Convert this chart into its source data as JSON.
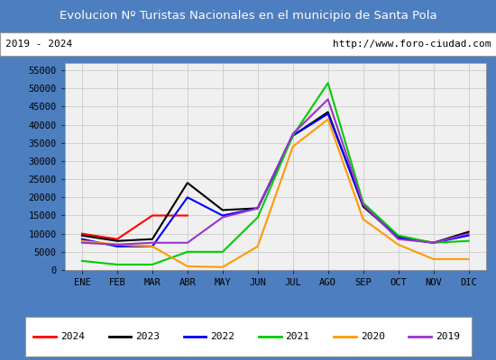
{
  "title": "Evolucion Nº Turistas Nacionales en el municipio de Santa Pola",
  "subtitle_left": "2019 - 2024",
  "subtitle_right": "http://www.foro-ciudad.com",
  "months": [
    "ENE",
    "FEB",
    "MAR",
    "ABR",
    "MAY",
    "JUN",
    "JUL",
    "AGO",
    "SEP",
    "OCT",
    "NOV",
    "DIC"
  ],
  "ylim": [
    0,
    57000
  ],
  "yticks": [
    0,
    5000,
    10000,
    15000,
    20000,
    25000,
    30000,
    35000,
    40000,
    45000,
    50000,
    55000
  ],
  "series": {
    "2024": {
      "color": "#ff0000",
      "linewidth": 1.5,
      "values": [
        10000,
        8500,
        15000,
        15000,
        null,
        null,
        null,
        null,
        null,
        null,
        null,
        null
      ]
    },
    "2023": {
      "color": "#000000",
      "linewidth": 1.5,
      "values": [
        9500,
        8000,
        8500,
        24000,
        16500,
        17000,
        37000,
        43500,
        17500,
        9000,
        7500,
        10500
      ]
    },
    "2022": {
      "color": "#0000ff",
      "linewidth": 1.5,
      "values": [
        8500,
        6500,
        6500,
        20000,
        15000,
        17000,
        37000,
        43000,
        18000,
        9000,
        7500,
        9500
      ]
    },
    "2021": {
      "color": "#00cc00",
      "linewidth": 1.5,
      "values": [
        2500,
        1500,
        1500,
        5000,
        5000,
        14500,
        37000,
        51500,
        18500,
        9500,
        7500,
        8000
      ]
    },
    "2020": {
      "color": "#ff9900",
      "linewidth": 1.5,
      "values": [
        8000,
        7000,
        6500,
        1000,
        800,
        6500,
        34000,
        41500,
        14000,
        7000,
        3000,
        3000
      ]
    },
    "2019": {
      "color": "#9933cc",
      "linewidth": 1.5,
      "values": [
        7500,
        7000,
        7500,
        7500,
        14500,
        17000,
        37500,
        47000,
        18000,
        8500,
        7500,
        10000
      ]
    }
  },
  "title_bg_color": "#4d7ebf",
  "title_text_color": "#ffffff",
  "plot_bg_color": "#f0f0f0",
  "fig_bg_color": "#4d7ebf",
  "inner_bg_color": "#ffffff",
  "grid_color": "#cccccc",
  "subtitle_box_border": "#888888"
}
